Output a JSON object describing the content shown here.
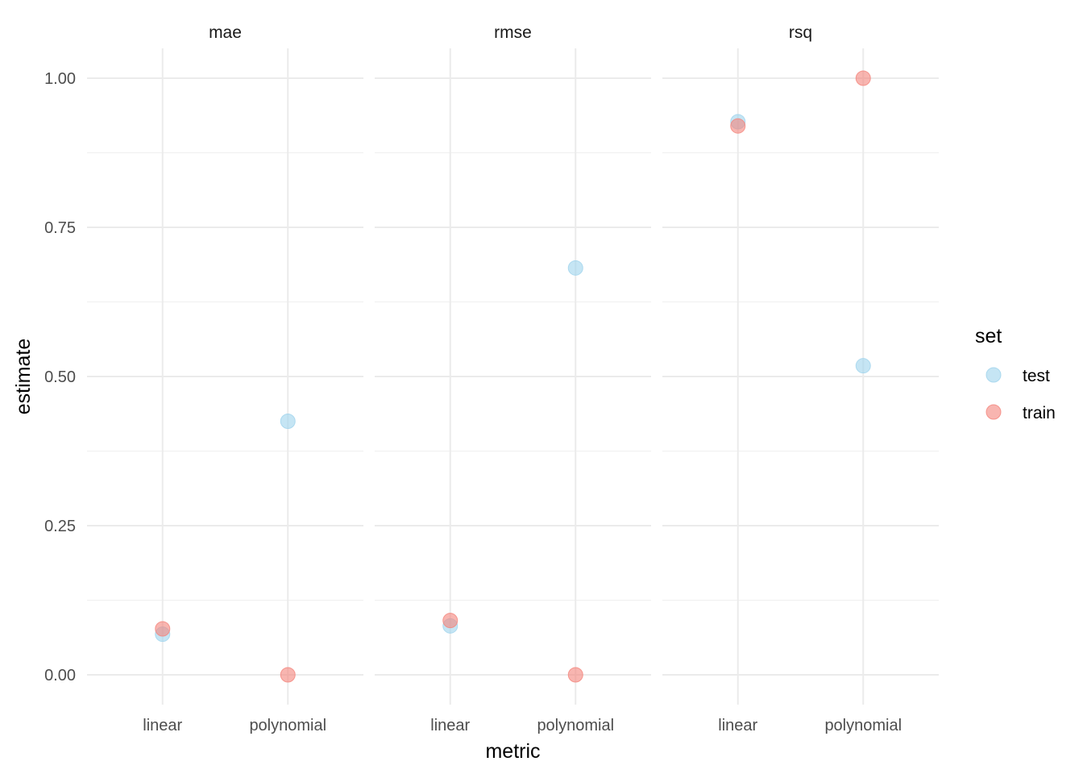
{
  "chart_data": {
    "type": "scatter",
    "facet_by": "metric",
    "facets": [
      "mae",
      "rmse",
      "rsq"
    ],
    "x_categories": [
      "linear",
      "polynomial"
    ],
    "xlabel": "metric",
    "ylabel": "estimate",
    "ylim": [
      -0.05,
      1.05
    ],
    "y_ticks": [
      "0.00",
      "0.25",
      "0.50",
      "0.75",
      "1.00"
    ],
    "grid": true,
    "legend": {
      "title": "set",
      "position": "right"
    },
    "series": [
      {
        "name": "test",
        "color": "#9fd3ec",
        "points": [
          {
            "facet": "mae",
            "x": "linear",
            "y": 0.068
          },
          {
            "facet": "mae",
            "x": "polynomial",
            "y": 0.425
          },
          {
            "facet": "rmse",
            "x": "linear",
            "y": 0.082
          },
          {
            "facet": "rmse",
            "x": "polynomial",
            "y": 0.682
          },
          {
            "facet": "rsq",
            "x": "linear",
            "y": 0.927
          },
          {
            "facet": "rsq",
            "x": "polynomial",
            "y": 0.518
          }
        ]
      },
      {
        "name": "train",
        "color": "#f4847c",
        "points": [
          {
            "facet": "mae",
            "x": "linear",
            "y": 0.077
          },
          {
            "facet": "mae",
            "x": "polynomial",
            "y": 0.0
          },
          {
            "facet": "rmse",
            "x": "linear",
            "y": 0.091
          },
          {
            "facet": "rmse",
            "x": "polynomial",
            "y": 0.0
          },
          {
            "facet": "rsq",
            "x": "linear",
            "y": 0.92
          },
          {
            "facet": "rsq",
            "x": "polynomial",
            "y": 1.0
          }
        ]
      }
    ]
  }
}
